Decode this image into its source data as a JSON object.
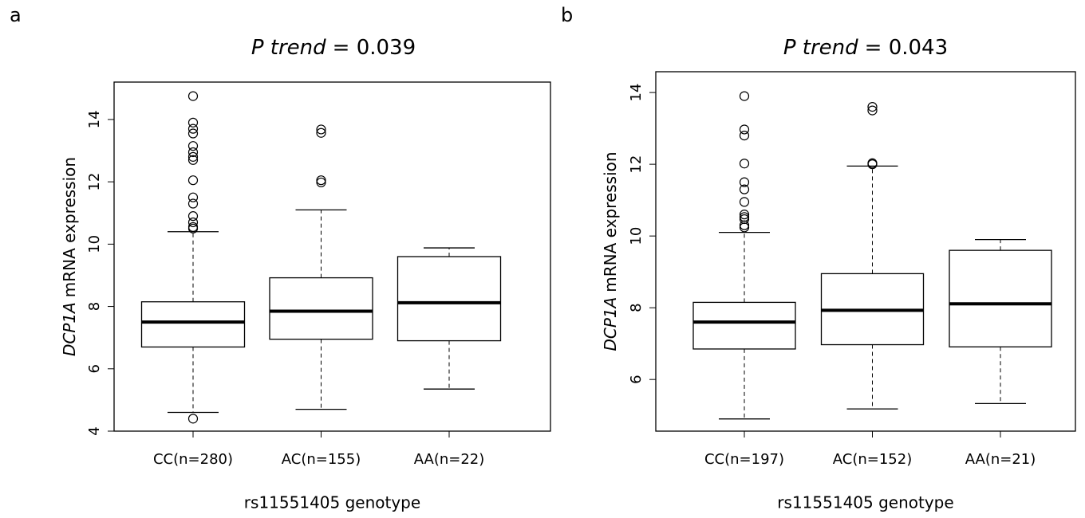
{
  "chart_data": [
    {
      "type": "box",
      "panel": "a",
      "title_stat": "P trend",
      "title_value": "= 0.039",
      "ylabel_gene": "DCP1A",
      "ylabel": "mRNA expression",
      "xlabel": "rs11551405 genotype",
      "categories": [
        "CC(n=280)",
        "AC(n=155)",
        "AA(n=22)"
      ],
      "boxes": [
        {
          "whisker_low": 4.6,
          "q1": 6.7,
          "median": 7.5,
          "q3": 8.15,
          "whisker_high": 10.4,
          "outliers": [
            14.75,
            13.9,
            13.7,
            13.55,
            13.15,
            12.95,
            12.8,
            12.7,
            12.05,
            11.5,
            11.3,
            10.9,
            10.7,
            10.55,
            10.5,
            4.4
          ]
        },
        {
          "whisker_low": 4.7,
          "q1": 6.95,
          "median": 7.85,
          "q3": 8.92,
          "whisker_high": 11.1,
          "outliers": [
            13.68,
            13.57,
            12.05,
            11.98
          ]
        },
        {
          "whisker_low": 5.35,
          "q1": 6.9,
          "median": 8.12,
          "q3": 9.6,
          "whisker_high": 9.88,
          "outliers": []
        }
      ],
      "ylim": [
        4,
        15.2
      ],
      "yticks": [
        4,
        6,
        8,
        10,
        12,
        14
      ]
    },
    {
      "type": "box",
      "panel": "b",
      "title_stat": "P trend",
      "title_value": "= 0.043",
      "ylabel_gene": "DCP1A",
      "ylabel": "mRNA expression",
      "xlabel": "rs11551405 genotype",
      "categories": [
        "CC(n=197)",
        "AC(n=152)",
        "AA(n=21)"
      ],
      "boxes": [
        {
          "whisker_low": 4.9,
          "q1": 6.85,
          "median": 7.6,
          "q3": 8.15,
          "whisker_high": 10.1,
          "outliers": [
            13.9,
            12.97,
            12.8,
            12.02,
            11.5,
            11.3,
            10.95,
            10.6,
            10.53,
            10.47,
            10.3,
            10.24
          ]
        },
        {
          "whisker_low": 5.18,
          "q1": 6.97,
          "median": 7.93,
          "q3": 8.95,
          "whisker_high": 11.95,
          "outliers": [
            13.6,
            13.5,
            12.03,
            12.0
          ]
        },
        {
          "whisker_low": 5.33,
          "q1": 6.91,
          "median": 8.11,
          "q3": 9.6,
          "whisker_high": 9.9,
          "outliers": []
        }
      ],
      "ylim": [
        4.56,
        14.58
      ],
      "yticks": [
        6,
        8,
        10,
        12,
        14
      ]
    }
  ]
}
